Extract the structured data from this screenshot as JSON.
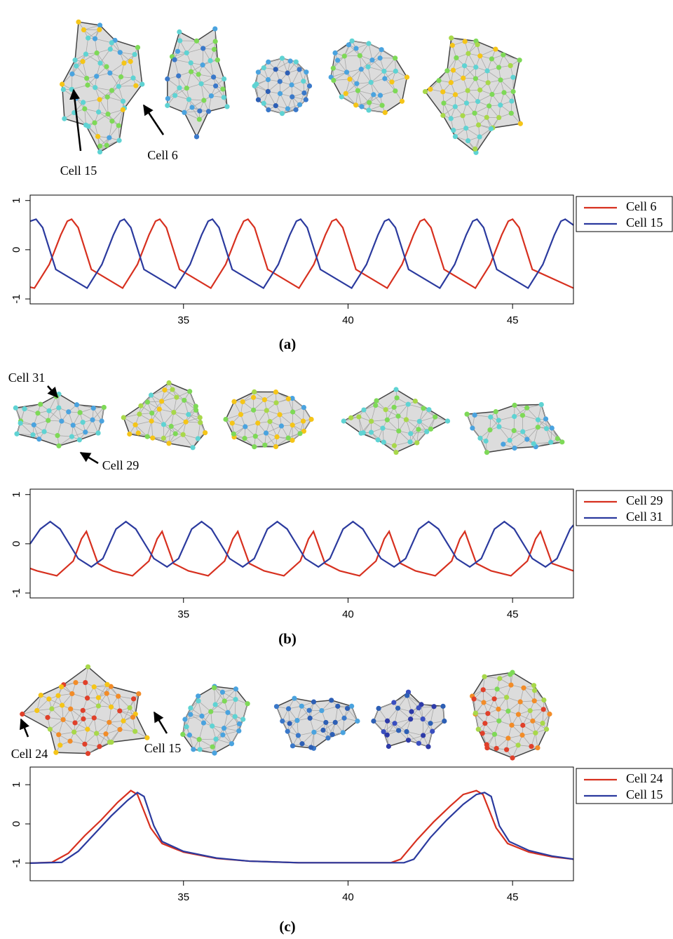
{
  "chart_data": [
    {
      "type": "line",
      "caption": "(a)",
      "annotations": [
        "Cell 15",
        "Cell 6"
      ],
      "xlim": [
        30.34,
        46.85
      ],
      "ylim": [
        -1.1,
        1.11
      ],
      "xticks": [
        35,
        40,
        45
      ],
      "yticks": [
        -1,
        0,
        1
      ],
      "series": [
        {
          "name": "Cell 6",
          "color": "#d7301f",
          "x": [
            30.34,
            30.47,
            30.92,
            31.27,
            31.47,
            31.6,
            31.8,
            32.2,
            33.15,
            33.6,
            33.95,
            34.15,
            34.28,
            34.48,
            34.88,
            35.83,
            36.28,
            36.63,
            36.83,
            36.96,
            37.16,
            37.56,
            38.51,
            38.96,
            39.31,
            39.51,
            39.64,
            39.84,
            40.24,
            41.19,
            41.64,
            41.99,
            42.19,
            42.32,
            42.52,
            42.92,
            43.87,
            44.32,
            44.67,
            44.87,
            45.0,
            45.2,
            45.6,
            46.85
          ],
          "values": [
            -0.76,
            -0.78,
            -0.3,
            0.3,
            0.58,
            0.62,
            0.45,
            -0.4,
            -0.78,
            -0.3,
            0.3,
            0.58,
            0.62,
            0.45,
            -0.4,
            -0.78,
            -0.3,
            0.3,
            0.58,
            0.62,
            0.45,
            -0.4,
            -0.78,
            -0.3,
            0.3,
            0.58,
            0.62,
            0.45,
            -0.4,
            -0.78,
            -0.3,
            0.3,
            0.58,
            0.62,
            0.45,
            -0.4,
            -0.78,
            -0.3,
            0.3,
            0.58,
            0.62,
            0.45,
            -0.4,
            -0.78
          ]
        },
        {
          "name": "Cell 15",
          "color": "#2b3a9e",
          "x": [
            30.34,
            30.52,
            30.72,
            31.12,
            32.07,
            32.52,
            32.87,
            33.07,
            33.2,
            33.4,
            33.8,
            34.75,
            35.2,
            35.55,
            35.75,
            35.88,
            36.08,
            36.48,
            37.43,
            37.88,
            38.23,
            38.43,
            38.56,
            38.76,
            39.16,
            40.11,
            40.56,
            40.91,
            41.11,
            41.24,
            41.44,
            41.84,
            42.79,
            43.24,
            43.59,
            43.79,
            43.92,
            44.12,
            44.52,
            45.47,
            45.92,
            46.27,
            46.47,
            46.6,
            46.85
          ],
          "values": [
            0.58,
            0.62,
            0.45,
            -0.4,
            -0.78,
            -0.3,
            0.3,
            0.58,
            0.62,
            0.45,
            -0.4,
            -0.78,
            -0.3,
            0.3,
            0.58,
            0.62,
            0.45,
            -0.4,
            -0.78,
            -0.3,
            0.3,
            0.58,
            0.62,
            0.45,
            -0.4,
            -0.78,
            -0.3,
            0.3,
            0.58,
            0.62,
            0.45,
            -0.4,
            -0.78,
            -0.3,
            0.3,
            0.58,
            0.62,
            0.45,
            -0.4,
            -0.78,
            -0.3,
            0.3,
            0.58,
            0.62,
            0.5
          ]
        }
      ]
    },
    {
      "type": "line",
      "caption": "(b)",
      "annotations": [
        "Cell 31",
        "Cell 29"
      ],
      "xlim": [
        30.34,
        46.85
      ],
      "ylim": [
        -1.1,
        1.11
      ],
      "xticks": [
        35,
        40,
        45
      ],
      "yticks": [
        -1,
        0,
        1
      ],
      "series": [
        {
          "name": "Cell 29",
          "color": "#d7301f",
          "x": [
            30.34,
            30.55,
            31.15,
            31.65,
            31.9,
            32.05,
            32.4,
            32.85,
            33.45,
            33.95,
            34.2,
            34.35,
            34.7,
            35.15,
            35.75,
            36.25,
            36.5,
            36.65,
            37.0,
            37.45,
            38.05,
            38.55,
            38.8,
            38.95,
            39.3,
            39.75,
            40.35,
            40.85,
            41.1,
            41.25,
            41.6,
            42.05,
            42.65,
            43.15,
            43.4,
            43.55,
            43.9,
            44.35,
            44.95,
            45.45,
            45.7,
            45.85,
            46.2,
            46.85
          ],
          "values": [
            -0.5,
            -0.55,
            -0.65,
            -0.35,
            0.1,
            0.25,
            -0.4,
            -0.55,
            -0.65,
            -0.35,
            0.1,
            0.25,
            -0.4,
            -0.55,
            -0.65,
            -0.35,
            0.1,
            0.25,
            -0.4,
            -0.55,
            -0.65,
            -0.35,
            0.1,
            0.25,
            -0.4,
            -0.55,
            -0.65,
            -0.35,
            0.1,
            0.25,
            -0.4,
            -0.55,
            -0.65,
            -0.35,
            0.1,
            0.25,
            -0.4,
            -0.55,
            -0.65,
            -0.35,
            0.1,
            0.25,
            -0.4,
            -0.55
          ]
        },
        {
          "name": "Cell 31",
          "color": "#2b3a9e",
          "x": [
            30.34,
            30.65,
            30.95,
            31.25,
            31.8,
            32.2,
            32.55,
            32.95,
            33.25,
            33.55,
            34.1,
            34.5,
            34.85,
            35.25,
            35.55,
            35.85,
            36.4,
            36.8,
            37.15,
            37.55,
            37.85,
            38.15,
            38.7,
            39.1,
            39.45,
            39.85,
            40.15,
            40.45,
            41.0,
            41.4,
            41.75,
            42.15,
            42.45,
            42.75,
            43.3,
            43.7,
            44.05,
            44.45,
            44.75,
            45.05,
            45.6,
            46.0,
            46.35,
            46.75,
            46.85
          ],
          "values": [
            0.0,
            0.3,
            0.45,
            0.3,
            -0.3,
            -0.47,
            -0.3,
            0.3,
            0.45,
            0.3,
            -0.3,
            -0.47,
            -0.3,
            0.3,
            0.45,
            0.3,
            -0.3,
            -0.47,
            -0.3,
            0.3,
            0.45,
            0.3,
            -0.3,
            -0.47,
            -0.3,
            0.3,
            0.45,
            0.3,
            -0.3,
            -0.47,
            -0.3,
            0.3,
            0.45,
            0.3,
            -0.3,
            -0.47,
            -0.3,
            0.3,
            0.45,
            0.3,
            -0.3,
            -0.47,
            -0.3,
            0.3,
            0.38
          ]
        }
      ]
    },
    {
      "type": "line",
      "caption": "(c)",
      "annotations": [
        "Cell 24",
        "Cell 15"
      ],
      "xlim": [
        30.34,
        46.85
      ],
      "ylim": [
        -1.45,
        1.45
      ],
      "xticks": [
        35,
        40,
        45
      ],
      "yticks": [
        -1,
        0,
        1
      ],
      "series": [
        {
          "name": "Cell 24",
          "color": "#d7301f",
          "x": [
            30.34,
            31.0,
            31.5,
            32.0,
            32.5,
            33.0,
            33.4,
            33.6,
            34.0,
            34.35,
            35.0,
            36.0,
            37.0,
            38.5,
            41.3,
            41.6,
            42.1,
            42.6,
            43.1,
            43.5,
            43.9,
            44.1,
            44.5,
            44.85,
            45.5,
            46.2,
            46.85
          ],
          "values": [
            -1,
            -0.98,
            -0.75,
            -0.3,
            0.1,
            0.55,
            0.85,
            0.75,
            -0.1,
            -0.5,
            -0.72,
            -0.88,
            -0.95,
            -0.99,
            -0.99,
            -0.9,
            -0.4,
            0.05,
            0.45,
            0.75,
            0.85,
            0.75,
            -0.1,
            -0.5,
            -0.72,
            -0.84,
            -0.9
          ]
        },
        {
          "name": "Cell 15",
          "color": "#2b3a9e",
          "x": [
            30.34,
            31.3,
            31.8,
            32.3,
            32.8,
            33.3,
            33.6,
            33.8,
            34.1,
            34.35,
            35.0,
            36.0,
            37.0,
            38.5,
            41.7,
            42.0,
            42.5,
            43.0,
            43.5,
            43.9,
            44.15,
            44.35,
            44.6,
            44.9,
            45.5,
            46.2,
            46.85
          ],
          "values": [
            -1,
            -0.98,
            -0.7,
            -0.25,
            0.2,
            0.6,
            0.8,
            0.7,
            -0.05,
            -0.45,
            -0.7,
            -0.87,
            -0.95,
            -0.99,
            -0.99,
            -0.9,
            -0.35,
            0.1,
            0.5,
            0.75,
            0.8,
            0.7,
            -0.05,
            -0.45,
            -0.68,
            -0.82,
            -0.9
          ]
        }
      ]
    }
  ]
}
